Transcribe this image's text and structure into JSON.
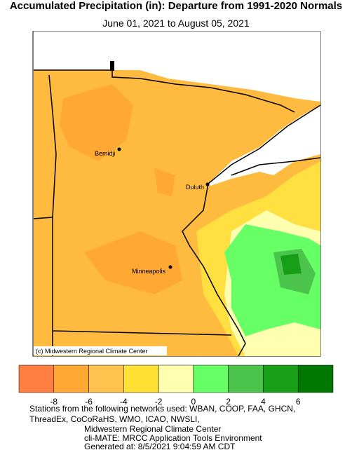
{
  "header": {
    "title": "Accumulated Precipitation (in): Departure from 1991-2020 Normals",
    "subtitle": "June 01, 2021 to August 05, 2021"
  },
  "map": {
    "cities": [
      {
        "name": "Bemidji"
      },
      {
        "name": "Duluth"
      },
      {
        "name": "Minneapolis"
      }
    ],
    "credit": "(c) Midwestern Regional Climate Center"
  },
  "legend": {
    "colors": [
      "#ff7f40",
      "#ffa833",
      "#ffc24d",
      "#ffe033",
      "#ffffb0",
      "#66ff66",
      "#4cc44c",
      "#17a017",
      "#007800"
    ],
    "ticks": [
      -8,
      -6,
      -4,
      -2,
      0,
      2,
      4,
      6
    ]
  },
  "footer": {
    "lines": [
      "Stations from the following networks used: WBAN, COOP, FAA, GHCN,",
      "ThreadEx, CoCoRaHS, WMO, ICAO, NWSLI,",
      "Midwestern Regional Climate Center",
      "cli-MATE: MRCC Application Tools Environment",
      "Generated at: 8/5/2021 9:04:59 AM CDT"
    ]
  }
}
